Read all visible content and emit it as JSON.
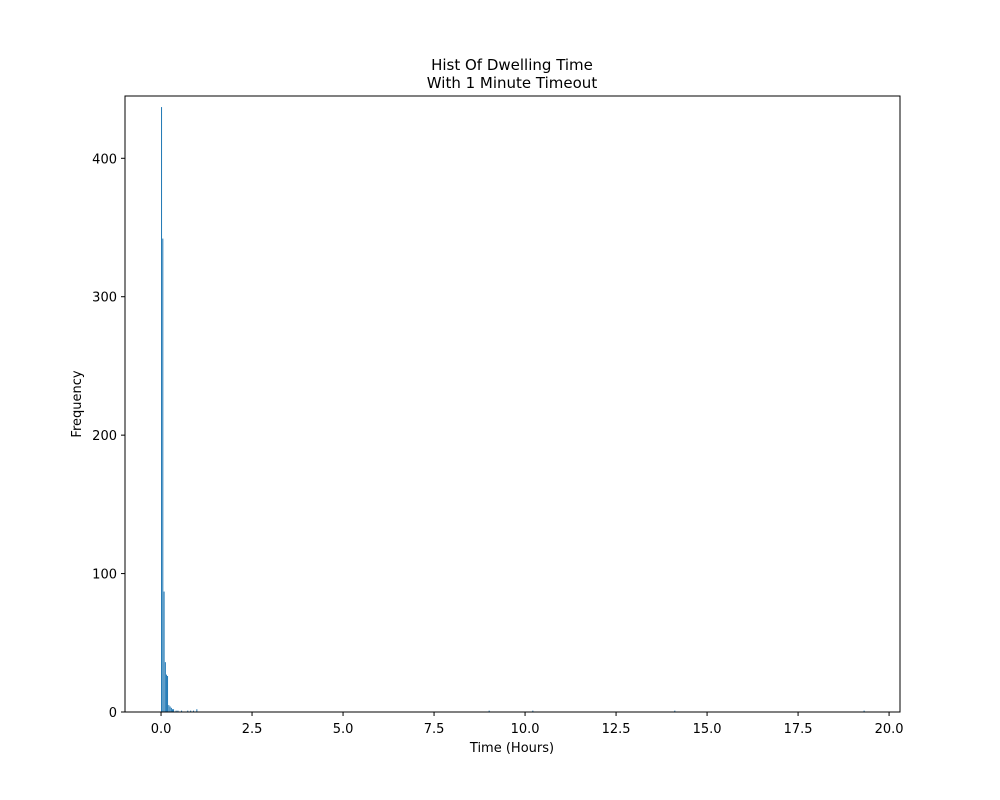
{
  "chart_data": {
    "type": "bar",
    "title": "Hist Of Dwelling Time",
    "subtitle": "With 1 Minute Timeout",
    "xlabel": "Time (Hours)",
    "ylabel": "Frequency",
    "xlim": [
      -0.99,
      20.3
    ],
    "ylim": [
      0,
      445
    ],
    "xticks": [
      "0.0",
      "2.5",
      "5.0",
      "7.5",
      "10.0",
      "12.5",
      "15.0",
      "17.5",
      "20.0"
    ],
    "yticks": [
      "0",
      "100",
      "200",
      "300",
      "400"
    ],
    "bar_color": "#1f77b4",
    "grid": false,
    "bins": [
      {
        "x": 0.0,
        "width": 0.018,
        "value": 437
      },
      {
        "x": 0.035,
        "width": 0.018,
        "value": 342
      },
      {
        "x": 0.07,
        "width": 0.018,
        "value": 87
      },
      {
        "x": 0.105,
        "width": 0.018,
        "value": 36
      },
      {
        "x": 0.135,
        "width": 0.018,
        "value": 27
      },
      {
        "x": 0.165,
        "width": 0.018,
        "value": 26
      },
      {
        "x": 0.2,
        "width": 0.018,
        "value": 5
      },
      {
        "x": 0.235,
        "width": 0.018,
        "value": 4
      },
      {
        "x": 0.27,
        "width": 0.018,
        "value": 3
      },
      {
        "x": 0.3,
        "width": 0.018,
        "value": 2
      },
      {
        "x": 0.33,
        "width": 0.018,
        "value": 2
      },
      {
        "x": 0.4,
        "width": 0.018,
        "value": 1
      },
      {
        "x": 0.45,
        "width": 0.018,
        "value": 1
      },
      {
        "x": 0.55,
        "width": 0.018,
        "value": 1
      },
      {
        "x": 0.72,
        "width": 0.018,
        "value": 1
      },
      {
        "x": 0.8,
        "width": 0.018,
        "value": 1
      },
      {
        "x": 0.88,
        "width": 0.018,
        "value": 1
      },
      {
        "x": 0.97,
        "width": 0.018,
        "value": 2
      },
      {
        "x": 9.0,
        "width": 0.018,
        "value": 1
      },
      {
        "x": 10.2,
        "width": 0.018,
        "value": 1
      },
      {
        "x": 14.1,
        "width": 0.018,
        "value": 1
      },
      {
        "x": 19.3,
        "width": 0.018,
        "value": 1
      }
    ]
  }
}
